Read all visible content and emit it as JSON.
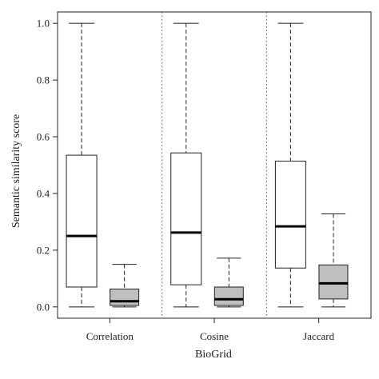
{
  "chart_data": {
    "type": "boxplot",
    "title": "",
    "ylabel": "Semantic similarity score",
    "xlabel": "BioGrid",
    "ylim": [
      -0.04,
      1.04
    ],
    "yticks": [
      0.0,
      0.2,
      0.4,
      0.6,
      0.8,
      1.0
    ],
    "ytick_labels": [
      "0.0",
      "0.2",
      "0.4",
      "0.6",
      "0.8",
      "1.0"
    ],
    "grid": false,
    "group_separators": "dotted",
    "series_colors": [
      "#ffffff",
      "#bfbfbf"
    ],
    "groups": [
      {
        "label": "Correlation",
        "boxes": [
          {
            "whisker_low": 0.0,
            "q1": 0.07,
            "median": 0.25,
            "q3": 0.535,
            "whisker_high": 1.0
          },
          {
            "whisker_low": 0.0,
            "q1": 0.005,
            "median": 0.02,
            "q3": 0.063,
            "whisker_high": 0.15
          }
        ]
      },
      {
        "label": "Cosine",
        "boxes": [
          {
            "whisker_low": 0.0,
            "q1": 0.078,
            "median": 0.262,
            "q3": 0.543,
            "whisker_high": 1.0
          },
          {
            "whisker_low": 0.0,
            "q1": 0.005,
            "median": 0.027,
            "q3": 0.07,
            "whisker_high": 0.172
          }
        ]
      },
      {
        "label": "Jaccard",
        "boxes": [
          {
            "whisker_low": 0.0,
            "q1": 0.137,
            "median": 0.284,
            "q3": 0.514,
            "whisker_high": 1.0
          },
          {
            "whisker_low": 0.0,
            "q1": 0.028,
            "median": 0.083,
            "q3": 0.148,
            "whisker_high": 0.328
          }
        ]
      }
    ]
  }
}
